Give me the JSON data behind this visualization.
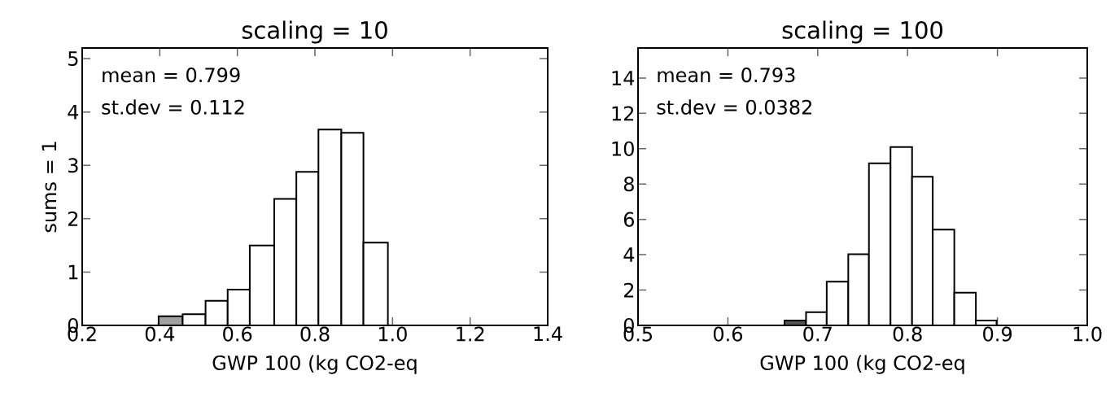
{
  "chart_data": [
    {
      "type": "histogram",
      "title": "scaling = 10",
      "xlabel": "GWP 100 (kg CO2-eq",
      "ylabel": "sums = 1",
      "annotations": [
        "mean = 0.799",
        "st.dev = 0.112"
      ],
      "bins": [
        0.397,
        0.459,
        0.518,
        0.575,
        0.632,
        0.695,
        0.752,
        0.809,
        0.868,
        0.925,
        0.988
      ],
      "values": [
        0.17,
        0.21,
        0.46,
        0.67,
        1.5,
        2.37,
        2.88,
        3.67,
        3.61,
        1.55
      ],
      "colors": [
        "#a0a0a0",
        "#ffffff",
        "#ffffff",
        "#ffffff",
        "#ffffff",
        "#ffffff",
        "#ffffff",
        "#ffffff",
        "#ffffff",
        "#ffffff"
      ],
      "xlim": [
        0.2,
        1.4
      ],
      "ylim": [
        0,
        5.2
      ],
      "xticks": [
        0.2,
        0.4,
        0.6,
        0.8,
        {
          "value": 1.0,
          "label": "1.0"
        },
        1.2,
        1.4
      ],
      "yticks": [
        0,
        1,
        2,
        3,
        4,
        5
      ]
    },
    {
      "type": "histogram",
      "title": "scaling = 100",
      "xlabel": "GWP 100 (kg CO2-eq",
      "annotations": [
        "mean = 0.793",
        "st.dev = 0.0382"
      ],
      "bins": [
        0.663,
        0.687,
        0.71,
        0.734,
        0.757,
        0.781,
        0.805,
        0.828,
        0.852,
        0.876,
        0.899
      ],
      "values": [
        0.28,
        0.75,
        2.48,
        4.03,
        9.17,
        10.1,
        8.41,
        5.42,
        1.85,
        0.28
      ],
      "colors": [
        "#555555",
        "#ffffff",
        "#ffffff",
        "#ffffff",
        "#ffffff",
        "#ffffff",
        "#ffffff",
        "#ffffff",
        "#ffffff",
        "#ffffff"
      ],
      "xlim": [
        0.5,
        1.0
      ],
      "ylim": [
        0,
        15.7
      ],
      "xticks": [
        0.5,
        0.6,
        0.7,
        0.8,
        0.9,
        {
          "value": 1.0,
          "label": "1.0"
        }
      ],
      "yticks": [
        0,
        2,
        4,
        6,
        8,
        10,
        12,
        14
      ]
    }
  ]
}
